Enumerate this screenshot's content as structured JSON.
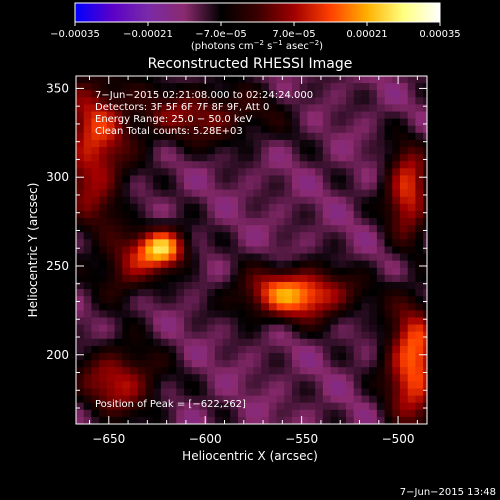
{
  "colorbar": {
    "tick_labels": [
      "−0.00035",
      "−0.00021",
      "−7.0e−05",
      "7.0e−05",
      "0.00021",
      "0.00035"
    ],
    "range": [
      -0.00035,
      0.00035
    ],
    "units": {
      "prefix": "(photons cm",
      "exp1": "−2",
      "mid1": " s",
      "exp2": "−1",
      "mid2": " asec",
      "exp3": "−2",
      "suffix": ")"
    },
    "colors": [
      "#0000ff",
      "#5a00c8",
      "#7a2aa8",
      "#8a2a6e",
      "#000000",
      "#3a0000",
      "#a00000",
      "#ff4000",
      "#ffb000",
      "#ffff80",
      "#ffffff"
    ]
  },
  "chart_data": {
    "type": "heatmap",
    "title": "Reconstructed RHESSI Image",
    "xlabel": "Heliocentric X (arcsec)",
    "ylabel": "Heliocentric Y (arcsec)",
    "xlim": [
      -667,
      -485
    ],
    "ylim": [
      161,
      357
    ],
    "x_ticks": [
      -650,
      -600,
      -550,
      -500
    ],
    "y_ticks": [
      200,
      250,
      300,
      350
    ],
    "x_tick_labels": [
      "−650",
      "−600",
      "−550",
      "−500"
    ],
    "y_tick_labels": [
      "200",
      "250",
      "300",
      "350"
    ],
    "info_lines": [
      "7−Jun−2015 02:21:08.000 to 02:24:24.000",
      "Detectors: 3F 5F 6F 7F 8F 9F, Att 0",
      "Energy Range: 25.0 − 50.0 keV",
      "Clean     Total counts: 5.28E+03"
    ],
    "peak_label": "Position of Peak = [−622,262]",
    "peak_position": [
      -622,
      262
    ],
    "sources": [
      {
        "x": -622,
        "y": 260,
        "sx": 9,
        "sy": 8,
        "amp": 0.00035
      },
      {
        "x": -553,
        "y": 234,
        "sx": 20,
        "sy": 10,
        "amp": 0.00031
      },
      {
        "x": -492,
        "y": 195,
        "sx": 10,
        "sy": 24,
        "amp": 0.00029
      },
      {
        "x": -495,
        "y": 292,
        "sx": 8,
        "sy": 18,
        "amp": 0.00025
      },
      {
        "x": -658,
        "y": 315,
        "sx": 12,
        "sy": 32,
        "amp": 0.00022
      },
      {
        "x": -645,
        "y": 185,
        "sx": 15,
        "sy": 14,
        "amp": 0.0002
      },
      {
        "x": -605,
        "y": 335,
        "sx": 28,
        "sy": 12,
        "amp": 0.00016
      },
      {
        "x": -640,
        "y": 248,
        "sx": 10,
        "sy": 12,
        "amp": 0.00015
      }
    ]
  },
  "footer_date": "7−Jun−2015 13:48"
}
